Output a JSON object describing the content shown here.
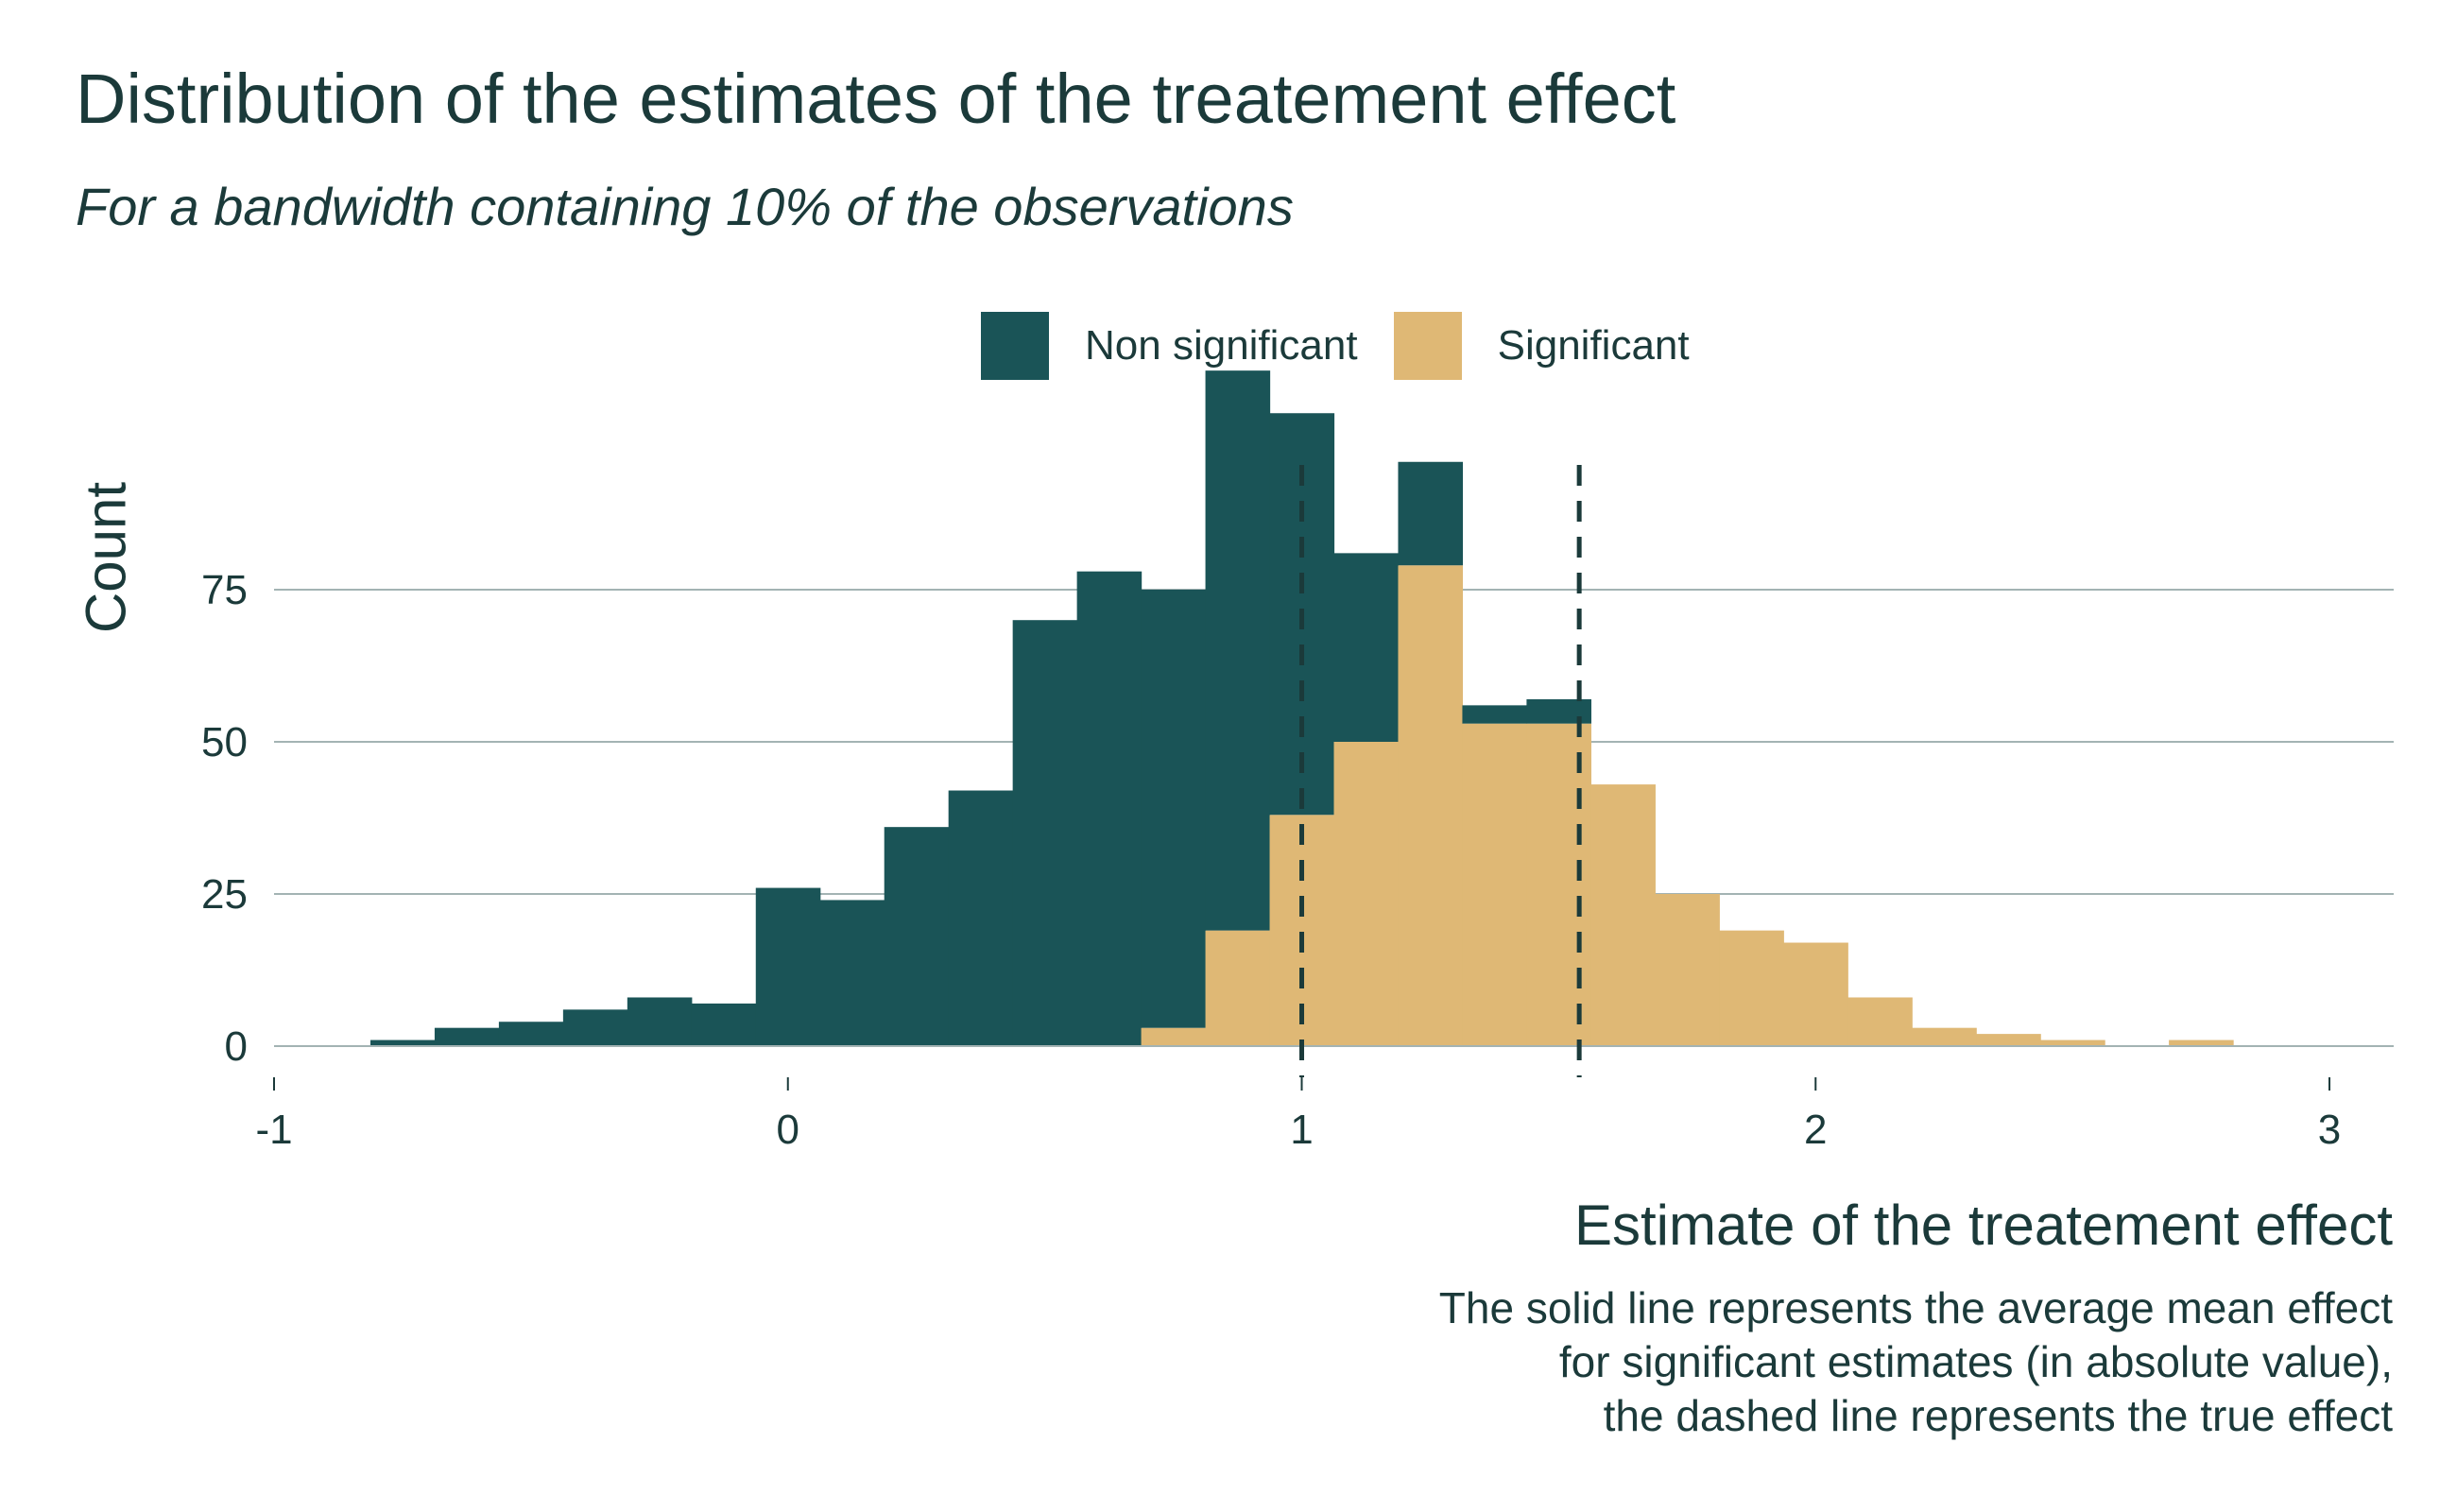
{
  "colors": {
    "non_significant": "#1a5457",
    "significant": "#dfb875",
    "grid": "#a3b3b3",
    "text": "#1b3a3a"
  },
  "chart_data": {
    "type": "bar",
    "title": "Distribution of the estimates of the treatement effect",
    "subtitle": "For a bandwidth containing 10% of the observations",
    "xlabel": "Estimate of the treatement effect",
    "ylabel": "Count",
    "xlim": [
      -1,
      3.125
    ],
    "ylim": [
      0,
      95
    ],
    "xticks": [
      "-1",
      "0",
      "1",
      "2",
      "3"
    ],
    "yticks": [
      "0",
      "25",
      "50",
      "75"
    ],
    "grid": "horizontal",
    "legend_position": "top",
    "bin_start": -0.8125,
    "bin_width": 0.125,
    "series": [
      {
        "name": "Non significant",
        "color": "#1a5457",
        "values": [
          1,
          3,
          4,
          6,
          8,
          7,
          26,
          24,
          36,
          42,
          70,
          78,
          72,
          92,
          66,
          31,
          17,
          3,
          4,
          0,
          0,
          0,
          0,
          0,
          0,
          0,
          0,
          0,
          0,
          0
        ]
      },
      {
        "name": "Significant",
        "color": "#dfb875",
        "values": [
          0,
          0,
          0,
          0,
          0,
          0,
          0,
          0,
          0,
          0,
          0,
          0,
          3,
          19,
          38,
          50,
          79,
          53,
          53,
          43,
          25,
          19,
          17,
          8,
          3,
          2,
          1,
          0,
          1,
          0
        ]
      }
    ],
    "reference_lines": [
      {
        "x": 1.0,
        "style": "dashed"
      },
      {
        "x": 1.54,
        "style": "dashed"
      }
    ]
  },
  "caption_lines": [
    "The solid line represents the average mean effect",
    "for significant estimates (in absolute value),",
    "the dashed line represents the true effect"
  ]
}
